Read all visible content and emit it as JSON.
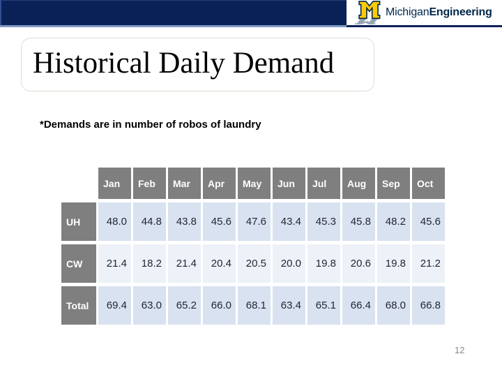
{
  "logo": {
    "brand_regular": "Michigan",
    "brand_bold": "Engineering",
    "m_color": "#ffcb05",
    "navy": "#00274c",
    "shadow_gray": "#97a5b5"
  },
  "banner": {
    "bar_color": "#0a2158",
    "underline_left_color": "#7e99c3",
    "underline_right_color": "#0a2158"
  },
  "slide": {
    "title": "Historical Daily Demand",
    "note": "*Demands are in number of robos of laundry",
    "page_number": "12"
  },
  "table": {
    "columns": [
      "Jan",
      "Feb",
      "Mar",
      "Apr",
      "May",
      "Jun",
      "Jul",
      "Aug",
      "Sep",
      "Oct"
    ],
    "rows": [
      {
        "label": "UH",
        "values": [
          "48.0",
          "44.8",
          "43.8",
          "45.6",
          "47.6",
          "43.4",
          "45.3",
          "45.8",
          "48.2",
          "45.6"
        ]
      },
      {
        "label": "CW",
        "values": [
          "21.4",
          "18.2",
          "21.4",
          "20.4",
          "20.5",
          "20.0",
          "19.8",
          "20.6",
          "19.8",
          "21.2"
        ]
      },
      {
        "label": "Total",
        "values": [
          "69.4",
          "63.0",
          "65.2",
          "66.0",
          "68.1",
          "63.4",
          "65.1",
          "66.4",
          "68.0",
          "66.8"
        ]
      }
    ],
    "header_bg": "#7f7f7f",
    "row_bg_blue": "#d9e2f0",
    "row_bg_light": "#edf1f8"
  }
}
